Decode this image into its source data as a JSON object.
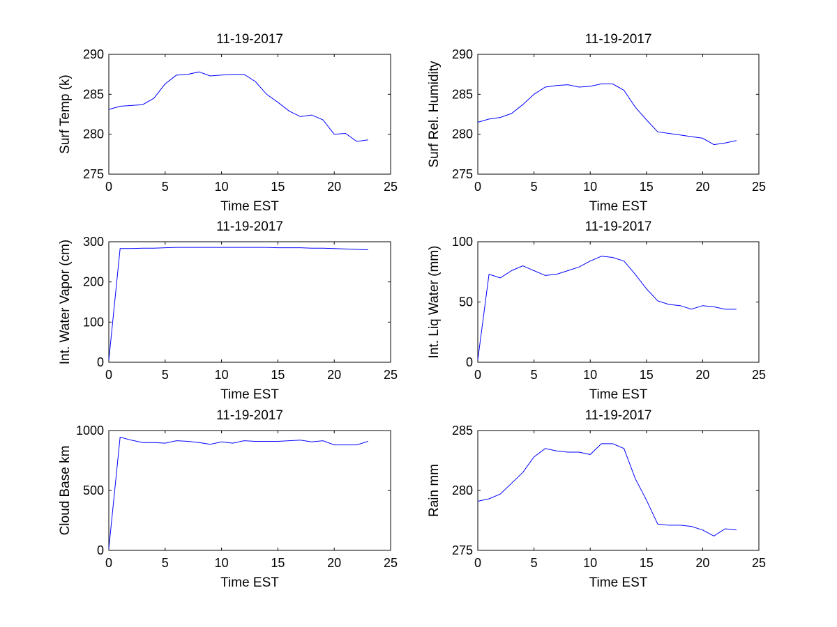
{
  "chart_data": [
    {
      "type": "line",
      "title": "11-19-2017",
      "xlabel": "Time EST",
      "ylabel": "Surf Temp (k)",
      "xlim": [
        0,
        25
      ],
      "ylim": [
        275,
        290
      ],
      "xticks": [
        0,
        5,
        10,
        15,
        20,
        25
      ],
      "yticks": [
        275,
        280,
        285,
        290
      ],
      "line_color": "#0000ff",
      "x": [
        0,
        1,
        2,
        3,
        4,
        5,
        6,
        7,
        8,
        9,
        10,
        11,
        12,
        13,
        14,
        15,
        16,
        17,
        18,
        19,
        20,
        21,
        22,
        23
      ],
      "y": [
        283.1,
        283.5,
        283.6,
        283.7,
        284.5,
        286.3,
        287.4,
        287.5,
        287.8,
        287.3,
        287.4,
        287.5,
        287.5,
        286.6,
        285.0,
        284.0,
        282.9,
        282.2,
        282.4,
        281.8,
        280.0,
        280.1,
        279.1,
        279.3
      ]
    },
    {
      "type": "line",
      "title": "11-19-2017",
      "xlabel": "Time EST",
      "ylabel": "Surf Rel. Humidity",
      "xlim": [
        0,
        25
      ],
      "ylim": [
        275,
        290
      ],
      "xticks": [
        0,
        5,
        10,
        15,
        20,
        25
      ],
      "yticks": [
        275,
        280,
        285,
        290
      ],
      "line_color": "#0000ff",
      "x": [
        0,
        1,
        2,
        3,
        4,
        5,
        6,
        7,
        8,
        9,
        10,
        11,
        12,
        13,
        14,
        15,
        16,
        17,
        18,
        19,
        20,
        21,
        22,
        23
      ],
      "y": [
        281.5,
        281.9,
        282.1,
        282.6,
        283.7,
        285.0,
        285.9,
        286.1,
        286.2,
        285.9,
        286.0,
        286.3,
        286.3,
        285.5,
        283.4,
        281.8,
        280.3,
        280.1,
        279.9,
        279.7,
        279.5,
        278.7,
        278.9,
        279.2
      ]
    },
    {
      "type": "line",
      "title": "11-19-2017",
      "xlabel": "Time EST",
      "ylabel": "Int. Water Vapor (cm)",
      "xlim": [
        0,
        25
      ],
      "ylim": [
        0,
        300
      ],
      "xticks": [
        0,
        5,
        10,
        15,
        20,
        25
      ],
      "yticks": [
        0,
        100,
        200,
        300
      ],
      "line_color": "#0000ff",
      "x": [
        0,
        1,
        2,
        3,
        4,
        5,
        6,
        7,
        8,
        9,
        10,
        11,
        12,
        13,
        14,
        15,
        16,
        17,
        18,
        19,
        20,
        21,
        22,
        23
      ],
      "y": [
        5,
        283,
        283,
        284,
        284,
        285,
        286,
        286,
        286,
        286,
        286,
        286,
        286,
        286,
        286,
        285,
        285,
        285,
        284,
        284,
        283,
        282,
        281,
        280
      ]
    },
    {
      "type": "line",
      "title": "11-19-2017",
      "xlabel": "Time EST",
      "ylabel": "Int. Liq Water (mm)",
      "xlim": [
        0,
        25
      ],
      "ylim": [
        0,
        100
      ],
      "xticks": [
        0,
        5,
        10,
        15,
        20,
        25
      ],
      "yticks": [
        0,
        50,
        100
      ],
      "line_color": "#0000ff",
      "x": [
        0,
        1,
        2,
        3,
        4,
        5,
        6,
        7,
        8,
        9,
        10,
        11,
        12,
        13,
        14,
        15,
        16,
        17,
        18,
        19,
        20,
        21,
        22,
        23
      ],
      "y": [
        2,
        73,
        70,
        76,
        80,
        76,
        72,
        73,
        76,
        79,
        84,
        88,
        87,
        84,
        73,
        61,
        51,
        48,
        47,
        44,
        47,
        46,
        44,
        44
      ]
    },
    {
      "type": "line",
      "title": "11-19-2017",
      "xlabel": "Time EST",
      "ylabel": "Cloud Base km",
      "xlim": [
        0,
        25
      ],
      "ylim": [
        0,
        1000
      ],
      "xticks": [
        0,
        5,
        10,
        15,
        20,
        25
      ],
      "yticks": [
        0,
        500,
        1000
      ],
      "line_color": "#0000ff",
      "x": [
        0,
        1,
        2,
        3,
        4,
        5,
        6,
        7,
        8,
        9,
        10,
        11,
        12,
        13,
        14,
        15,
        16,
        17,
        18,
        19,
        20,
        21,
        22,
        23
      ],
      "y": [
        15,
        945,
        920,
        900,
        900,
        895,
        915,
        910,
        900,
        885,
        905,
        895,
        915,
        910,
        910,
        910,
        915,
        920,
        905,
        915,
        880,
        880,
        880,
        910
      ]
    },
    {
      "type": "line",
      "title": "11-19-2017",
      "xlabel": "Time EST",
      "ylabel": "Rain mm",
      "xlim": [
        0,
        25
      ],
      "ylim": [
        275,
        285
      ],
      "xticks": [
        0,
        5,
        10,
        15,
        20,
        25
      ],
      "yticks": [
        275,
        280,
        285
      ],
      "line_color": "#0000ff",
      "x": [
        0,
        1,
        2,
        3,
        4,
        5,
        6,
        7,
        8,
        9,
        10,
        11,
        12,
        13,
        14,
        15,
        16,
        17,
        18,
        19,
        20,
        21,
        22,
        23
      ],
      "y": [
        279.1,
        279.3,
        279.7,
        280.6,
        281.5,
        282.8,
        283.5,
        283.3,
        283.2,
        283.2,
        283.0,
        283.9,
        283.9,
        283.5,
        281.0,
        279.2,
        277.2,
        277.1,
        277.1,
        277.0,
        276.7,
        276.2,
        276.8,
        276.7
      ]
    }
  ]
}
